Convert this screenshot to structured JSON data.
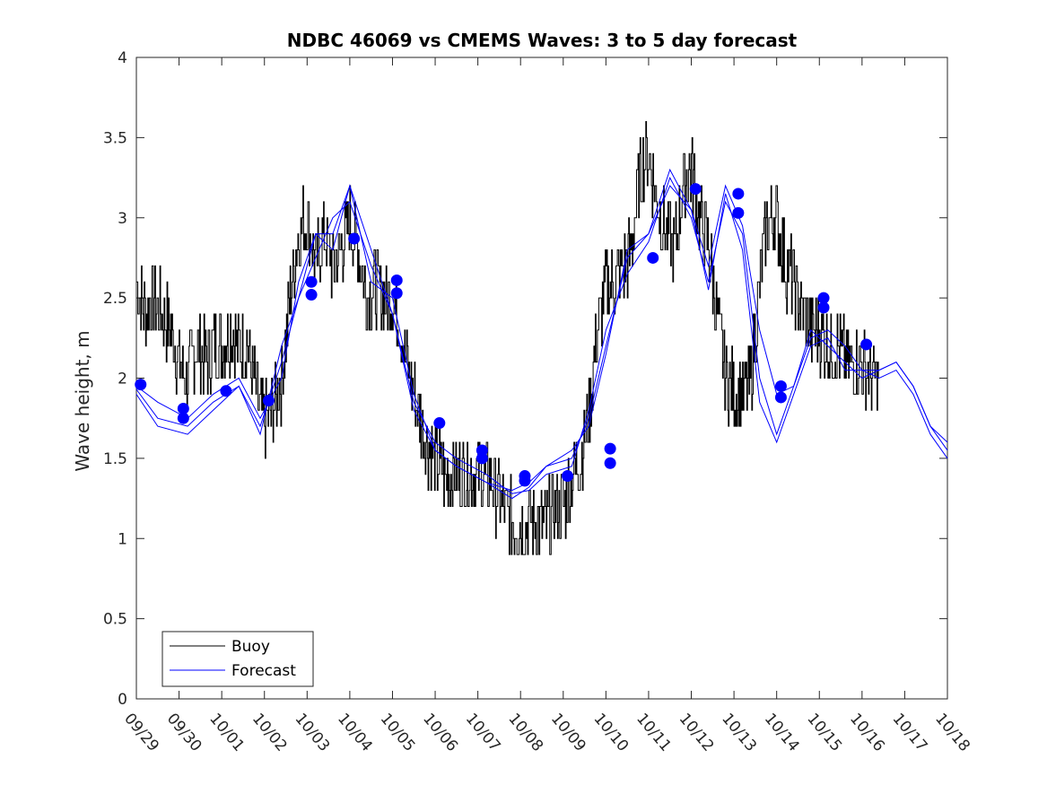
{
  "chart_data": {
    "type": "line",
    "title": "NDBC 46069 vs CMEMS Waves: 3 to 5 day forecast",
    "xlabel": "",
    "ylabel": "Wave height, m",
    "xlim": [
      0,
      19
    ],
    "ylim": [
      0,
      4
    ],
    "yticks": [
      0,
      0.5,
      1,
      1.5,
      2,
      2.5,
      3,
      3.5,
      4
    ],
    "ytick_labels": [
      "0",
      "0.5",
      "1",
      "1.5",
      "2",
      "2.5",
      "3",
      "3.5",
      "4"
    ],
    "xticks": [
      0,
      1,
      2,
      3,
      4,
      5,
      6,
      7,
      8,
      9,
      10,
      11,
      12,
      13,
      14,
      15,
      16,
      17,
      18,
      19
    ],
    "xtick_labels": [
      "09/29",
      "09/30",
      "10/01",
      "10/02",
      "10/03",
      "10/04",
      "10/05",
      "10/06",
      "10/07",
      "10/08",
      "10/09",
      "10/10",
      "10/11",
      "10/12",
      "10/13",
      "10/14",
      "10/15",
      "10/16",
      "10/17",
      "10/18"
    ],
    "x_units": "days since 09/29",
    "grid": false,
    "legend": {
      "position": "bottom-left",
      "entries": [
        {
          "name": "Buoy",
          "color": "#000000"
        },
        {
          "name": "Forecast",
          "color": "#0000ff"
        }
      ]
    },
    "series": [
      {
        "name": "Buoy",
        "color": "#000000",
        "noisy": true,
        "x": [
          0,
          0.2,
          0.4,
          0.6,
          0.8,
          1.0,
          1.2,
          1.4,
          1.6,
          1.8,
          2.0,
          2.2,
          2.4,
          2.6,
          2.8,
          3.0,
          3.2,
          3.4,
          3.6,
          3.8,
          4.0,
          4.2,
          4.4,
          4.6,
          4.8,
          5.0,
          5.2,
          5.4,
          5.6,
          5.8,
          6.0,
          6.2,
          6.4,
          6.6,
          6.8,
          7.0,
          7.2,
          7.4,
          7.6,
          7.8,
          8.0,
          8.2,
          8.4,
          8.6,
          8.8,
          9.0,
          9.2,
          9.4,
          9.6,
          9.8,
          10.0,
          10.2,
          10.4,
          10.6,
          10.8,
          11.0,
          11.2,
          11.4,
          11.6,
          11.8,
          12.0,
          12.2,
          12.4,
          12.6,
          12.8,
          13.0,
          13.2,
          13.4,
          13.6,
          13.8,
          14.0,
          14.2,
          14.4,
          14.6,
          14.8,
          15.0,
          15.2,
          15.4,
          15.6,
          15.8,
          16.0,
          16.2,
          16.4,
          16.6,
          16.8,
          17.0,
          17.2,
          17.4
        ],
        "y": [
          2.6,
          2.4,
          2.5,
          2.4,
          2.3,
          2.1,
          2.0,
          2.2,
          2.1,
          2.2,
          2.2,
          2.3,
          2.2,
          2.2,
          1.9,
          1.7,
          1.8,
          2.0,
          2.5,
          2.9,
          3.0,
          2.7,
          2.9,
          2.7,
          2.8,
          3.0,
          2.8,
          2.5,
          2.6,
          2.5,
          2.5,
          2.3,
          2.0,
          1.8,
          1.6,
          1.5,
          1.4,
          1.4,
          1.4,
          1.4,
          1.4,
          1.4,
          1.3,
          1.2,
          1.1,
          1.1,
          1.1,
          1.1,
          1.1,
          1.2,
          1.2,
          1.4,
          1.5,
          1.8,
          2.3,
          2.6,
          2.6,
          2.7,
          2.8,
          3.3,
          3.4,
          3.1,
          2.9,
          2.8,
          3.2,
          3.3,
          3.0,
          2.8,
          2.4,
          2.0,
          1.9,
          1.9,
          2.0,
          2.6,
          3.0,
          3.0,
          2.7,
          2.6,
          2.4,
          2.3,
          2.3,
          2.2,
          2.2,
          2.1,
          2.1,
          2.1,
          2.0,
          2.0
        ]
      },
      {
        "name": "Forecast",
        "color": "#0000ff",
        "x": [
          0,
          0.5,
          1.2,
          1.8,
          2.4,
          2.9,
          3.4,
          3.8,
          4.2,
          4.6,
          5.0,
          5.5,
          6.0,
          6.5,
          7.0,
          7.5,
          8.2,
          8.8,
          9.2,
          9.6,
          10.2,
          10.6,
          11.0,
          11.5,
          12.0,
          12.5,
          13.0,
          13.4,
          13.8,
          14.2,
          14.6,
          15.0,
          15.4,
          15.8,
          16.2,
          16.6,
          17.0,
          17.4,
          17.8,
          18.2,
          18.6,
          19.0
        ],
        "y": [
          1.95,
          1.85,
          1.75,
          1.9,
          2.0,
          1.75,
          2.0,
          2.6,
          2.9,
          2.9,
          3.2,
          2.6,
          2.5,
          1.9,
          1.55,
          1.45,
          1.35,
          1.3,
          1.35,
          1.45,
          1.5,
          1.75,
          2.2,
          2.75,
          2.9,
          3.2,
          3.05,
          2.7,
          3.2,
          2.95,
          2.3,
          1.9,
          1.95,
          2.25,
          2.3,
          2.2,
          2.05,
          2.05,
          2.1,
          1.95,
          1.7,
          1.6
        ]
      },
      {
        "name": "",
        "color": "#0000ff",
        "x": [
          0,
          0.5,
          1.2,
          1.8,
          2.4,
          2.9,
          3.4,
          3.8,
          4.2,
          4.6,
          5.0,
          5.5,
          6.0,
          6.5,
          7.0,
          7.5,
          8.2,
          8.8,
          9.2,
          9.6,
          10.2,
          10.6,
          11.0,
          11.5,
          12.0,
          12.5,
          13.0,
          13.4,
          13.8,
          14.2,
          14.6,
          15.0,
          15.4,
          15.8,
          16.2,
          16.6,
          17.0,
          17.4,
          17.8,
          18.2,
          18.6,
          19.0
        ],
        "y": [
          1.93,
          1.75,
          1.7,
          1.85,
          1.95,
          1.7,
          2.1,
          2.5,
          2.75,
          3.0,
          3.1,
          2.7,
          2.4,
          1.85,
          1.6,
          1.5,
          1.4,
          1.28,
          1.3,
          1.4,
          1.45,
          1.8,
          2.3,
          2.65,
          2.85,
          3.25,
          3.0,
          2.6,
          3.1,
          2.9,
          2.0,
          1.65,
          1.95,
          2.3,
          2.2,
          2.1,
          2.0,
          2.05,
          2.1,
          1.95,
          1.7,
          1.55
        ]
      },
      {
        "name": "",
        "color": "#0000ff",
        "x": [
          0,
          0.5,
          1.2,
          1.8,
          2.4,
          2.9,
          3.4,
          3.8,
          4.2,
          4.6,
          5.0,
          5.5,
          6.0,
          6.5,
          7.0,
          7.5,
          8.2,
          8.8,
          9.2,
          9.6,
          10.2,
          10.6,
          11.0,
          11.5,
          12.0,
          12.5,
          13.0,
          13.4,
          13.8,
          14.2,
          14.6,
          15.0,
          15.4,
          15.8,
          16.2,
          16.6,
          17.0,
          17.4,
          17.8,
          18.2,
          18.6,
          19.0
        ],
        "y": [
          1.9,
          1.7,
          1.65,
          1.8,
          1.95,
          1.65,
          2.2,
          2.5,
          2.9,
          2.8,
          3.2,
          2.8,
          2.4,
          1.8,
          1.55,
          1.45,
          1.35,
          1.25,
          1.32,
          1.45,
          1.55,
          1.7,
          2.15,
          2.8,
          2.9,
          3.3,
          3.05,
          2.55,
          3.15,
          2.8,
          1.85,
          1.6,
          1.9,
          2.2,
          2.25,
          2.05,
          2.05,
          2.0,
          2.05,
          1.9,
          1.65,
          1.5
        ]
      },
      {
        "name": "",
        "color": "#0000ff",
        "marker": "circle",
        "x": [
          0.1,
          1.1,
          1.1,
          2.1,
          3.1,
          4.1,
          4.1,
          5.1,
          6.1,
          6.1,
          7.1,
          8.1,
          8.1,
          9.1,
          9.1,
          10.1,
          11.1,
          11.1,
          12.1,
          13.1,
          14.1,
          14.1,
          15.1,
          15.1,
          16.1,
          16.1,
          17.1
        ],
        "y": [
          1.96,
          1.81,
          1.75,
          1.92,
          1.86,
          2.6,
          2.52,
          2.87,
          2.61,
          2.53,
          1.72,
          1.55,
          1.5,
          1.39,
          1.36,
          1.39,
          1.56,
          1.47,
          2.75,
          3.18,
          3.15,
          3.03,
          1.95,
          1.88,
          2.5,
          2.44,
          2.21
        ]
      }
    ]
  }
}
